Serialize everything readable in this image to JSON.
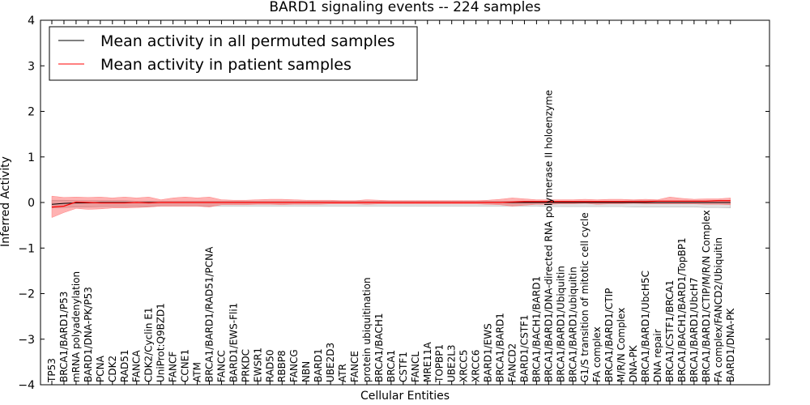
{
  "chart_data": {
    "type": "line",
    "title": "BARD1 signaling events -- 224 samples",
    "xlabel": "Cellular Entities",
    "ylabel": "Inferred Activity",
    "ylim": [
      -4,
      4
    ],
    "yticks": [
      "4",
      "3",
      "2",
      "1",
      "0",
      "−1",
      "−2",
      "−3",
      "−4"
    ],
    "categories": [
      "TP53",
      "BRCA1/BARD1/P53",
      "mRNA polyadenylation",
      "BARD1/DNA-PK/P53",
      "PCNA",
      "CDK2",
      "RAD51",
      "FANCA",
      "CDK2/Cyclin E1",
      "UniProt:Q9BZD1",
      "FANCF",
      "CCNE1",
      "ATM",
      "BRCA1/BARD1/RAD51/PCNA",
      "FANCC",
      "BARD1/EWS-Fli1",
      "PRKDC",
      "EWSR1",
      "RAD50",
      "RBBP8",
      "FANCG",
      "NBN",
      "BARD1",
      "UBE2D3",
      "ATR",
      "FANCE",
      "protein ubiquitination",
      "BRCA1/BACH1",
      "BRCA1",
      "CSTF1",
      "FANCL",
      "MRE11A",
      "TOPBP1",
      "UBE2L3",
      "XRCC5",
      "XRCC6",
      "BARD1/EWS",
      "BRCA1/BARD1",
      "FANCD2",
      "BARD1/CSTF1",
      "BRCA1/BACH1/BARD1",
      "BRCA1/BARD1/DNA-directed RNA polymerase II holoenzyme",
      "BRCA1/BARD1/Ubiquitin",
      "BRCA1/BARD1/ubiquitin",
      "G1/S transition of mitotic cell cycle",
      "FA complex",
      "BRCA1/BARD1/CTIP",
      "M/R/N Complex",
      "DNA-PK",
      "BRCA1/BARD1/UbcH5C",
      "DNA repair",
      "BRCA1/CSTF1/BRCA1",
      "BRCA1/BACH1/BARD1/TopBP1",
      "BRCA1/BARD1/UbcH7",
      "BRCA1/BARD1/CTIP/M/R/N Complex",
      "FA complex/FANCD2/Ubiquitin",
      "BARD1/DNA-PK"
    ],
    "series": [
      {
        "name": "Mean activity in all permuted samples",
        "color": "#000000",
        "values": [
          -0.04,
          -0.02,
          -0.01,
          -0.01,
          0,
          0,
          0,
          0,
          0,
          0,
          0,
          0,
          0,
          0,
          0,
          0,
          0,
          0,
          0,
          0,
          0,
          0,
          0,
          0,
          0,
          0,
          0,
          0,
          0,
          0,
          0,
          0,
          0,
          0,
          0,
          0,
          0,
          0,
          0,
          0,
          0,
          0,
          0,
          0,
          0,
          0,
          0,
          0,
          0,
          0,
          0,
          0,
          0,
          0,
          0,
          0,
          0
        ],
        "band_lower": [
          -0.12,
          -0.11,
          -0.1,
          -0.1,
          -0.09,
          -0.09,
          -0.09,
          -0.09,
          -0.09,
          -0.08,
          -0.08,
          -0.08,
          -0.08,
          -0.08,
          -0.08,
          -0.08,
          -0.08,
          -0.08,
          -0.08,
          -0.08,
          -0.08,
          -0.08,
          -0.08,
          -0.08,
          -0.08,
          -0.08,
          -0.08,
          -0.08,
          -0.08,
          -0.08,
          -0.08,
          -0.08,
          -0.08,
          -0.08,
          -0.08,
          -0.08,
          -0.08,
          -0.08,
          -0.08,
          -0.08,
          -0.08,
          -0.09,
          -0.09,
          -0.09,
          -0.09,
          -0.09,
          -0.09,
          -0.09,
          -0.1,
          -0.1,
          -0.1,
          -0.1,
          -0.1,
          -0.1,
          -0.11,
          -0.11,
          -0.12
        ],
        "band_upper": [
          0.05,
          0.05,
          0.04,
          0.04,
          0.04,
          0.04,
          0.04,
          0.03,
          0.03,
          0.03,
          0.03,
          0.03,
          0.03,
          0.03,
          0.03,
          0.03,
          0.03,
          0.03,
          0.03,
          0.03,
          0.03,
          0.03,
          0.03,
          0.03,
          0.03,
          0.03,
          0.03,
          0.03,
          0.03,
          0.03,
          0.03,
          0.03,
          0.03,
          0.03,
          0.03,
          0.03,
          0.03,
          0.03,
          0.03,
          0.03,
          0.03,
          0.03,
          0.03,
          0.03,
          0.03,
          0.03,
          0.03,
          0.03,
          0.04,
          0.04,
          0.04,
          0.04,
          0.04,
          0.04,
          0.04,
          0.05,
          0.05
        ]
      },
      {
        "name": "Mean activity in patient samples",
        "color": "#ff0000",
        "values": [
          -0.1,
          -0.08,
          0.01,
          0,
          -0.01,
          -0.01,
          -0.01,
          0,
          -0.01,
          0,
          0,
          0,
          0,
          0,
          0,
          0,
          0,
          0,
          0,
          0,
          0,
          0,
          0,
          0,
          0,
          0,
          0,
          0,
          0,
          0,
          0,
          0,
          0,
          0,
          0,
          0,
          0,
          0,
          0.01,
          0.02,
          0.02,
          0.02,
          0.02,
          0.02,
          0.02,
          0.02,
          0.02,
          0.02,
          0.02,
          0.02,
          0.03,
          0.03,
          0.03,
          0.03,
          0.03,
          0.04,
          0.04
        ],
        "band_lower": [
          -0.33,
          -0.22,
          -0.13,
          -0.15,
          -0.14,
          -0.12,
          -0.12,
          -0.11,
          -0.1,
          -0.08,
          -0.08,
          -0.08,
          -0.08,
          -0.1,
          -0.05,
          -0.05,
          -0.05,
          -0.04,
          -0.04,
          -0.05,
          -0.04,
          -0.04,
          -0.04,
          -0.03,
          -0.03,
          -0.03,
          -0.04,
          -0.03,
          -0.03,
          -0.03,
          -0.03,
          -0.03,
          -0.03,
          -0.03,
          -0.03,
          -0.03,
          -0.04,
          -0.05,
          -0.08,
          -0.06,
          -0.04,
          -0.04,
          -0.03,
          -0.03,
          -0.02,
          -0.04,
          -0.03,
          -0.03,
          -0.02,
          -0.03,
          -0.03,
          -0.03,
          -0.03,
          -0.03,
          -0.04,
          -0.04,
          -0.05
        ],
        "band_upper": [
          0.14,
          0.11,
          0.12,
          0.11,
          0.12,
          0.1,
          0.12,
          0.1,
          0.12,
          0.06,
          0.1,
          0.12,
          0.1,
          0.12,
          0.06,
          0.05,
          0.05,
          0.06,
          0.07,
          0.07,
          0.06,
          0.05,
          0.05,
          0.05,
          0.04,
          0.04,
          0.06,
          0.05,
          0.04,
          0.04,
          0.04,
          0.04,
          0.04,
          0.04,
          0.04,
          0.04,
          0.05,
          0.07,
          0.1,
          0.08,
          0.06,
          0.06,
          0.06,
          0.06,
          0.07,
          0.06,
          0.07,
          0.07,
          0.06,
          0.07,
          0.06,
          0.12,
          0.09,
          0.07,
          0.08,
          0.08,
          0.1
        ]
      }
    ],
    "legend_position": "top-left"
  }
}
